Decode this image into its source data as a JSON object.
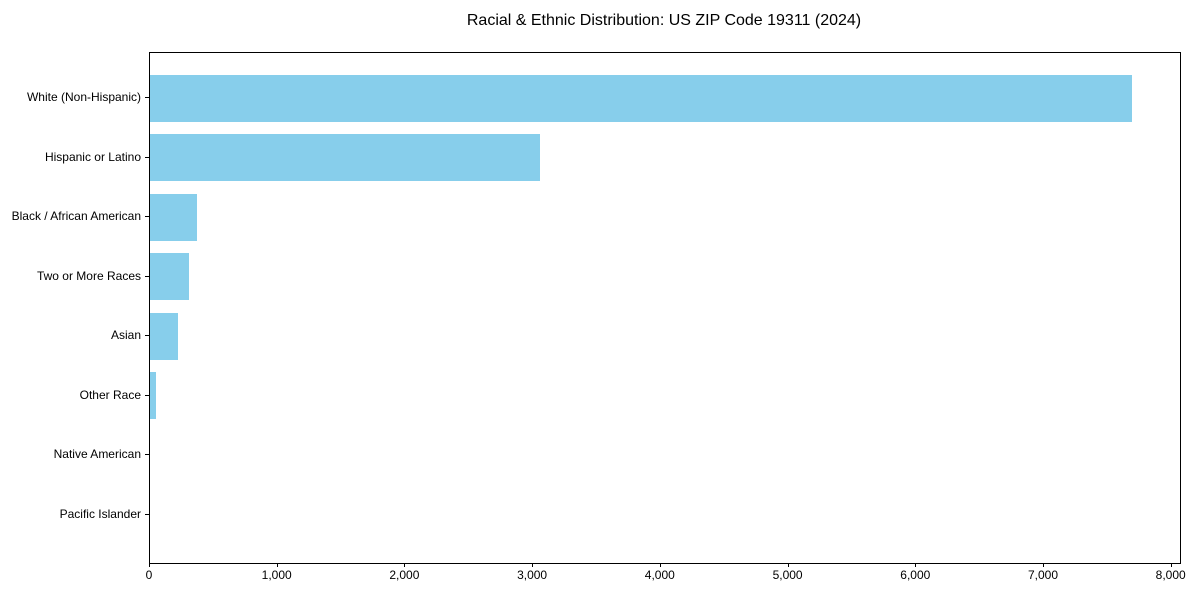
{
  "chart_data": {
    "type": "bar",
    "orientation": "horizontal",
    "title": "Racial & Ethnic Distribution: US ZIP Code 19311 (2024)",
    "categories": [
      "White (Non-Hispanic)",
      "Hispanic or Latino",
      "Black / African American",
      "Two or More Races",
      "Asian",
      "Other Race",
      "Native American",
      "Pacific Islander"
    ],
    "values": [
      7690,
      3052,
      368,
      308,
      218,
      48,
      0,
      0
    ],
    "xlabel": "",
    "ylabel": "",
    "xlim": [
      0,
      8065
    ],
    "xticks": [
      0,
      1000,
      2000,
      3000,
      4000,
      5000,
      6000,
      7000,
      8000
    ],
    "xtick_labels": [
      "0",
      "1,000",
      "2,000",
      "3,000",
      "4,000",
      "5,000",
      "6,000",
      "7,000",
      "8,000"
    ],
    "grid": false,
    "legend": "none",
    "bar_color": "#87CEEB",
    "axis_color": "#000000",
    "background_color": "#ffffff"
  }
}
